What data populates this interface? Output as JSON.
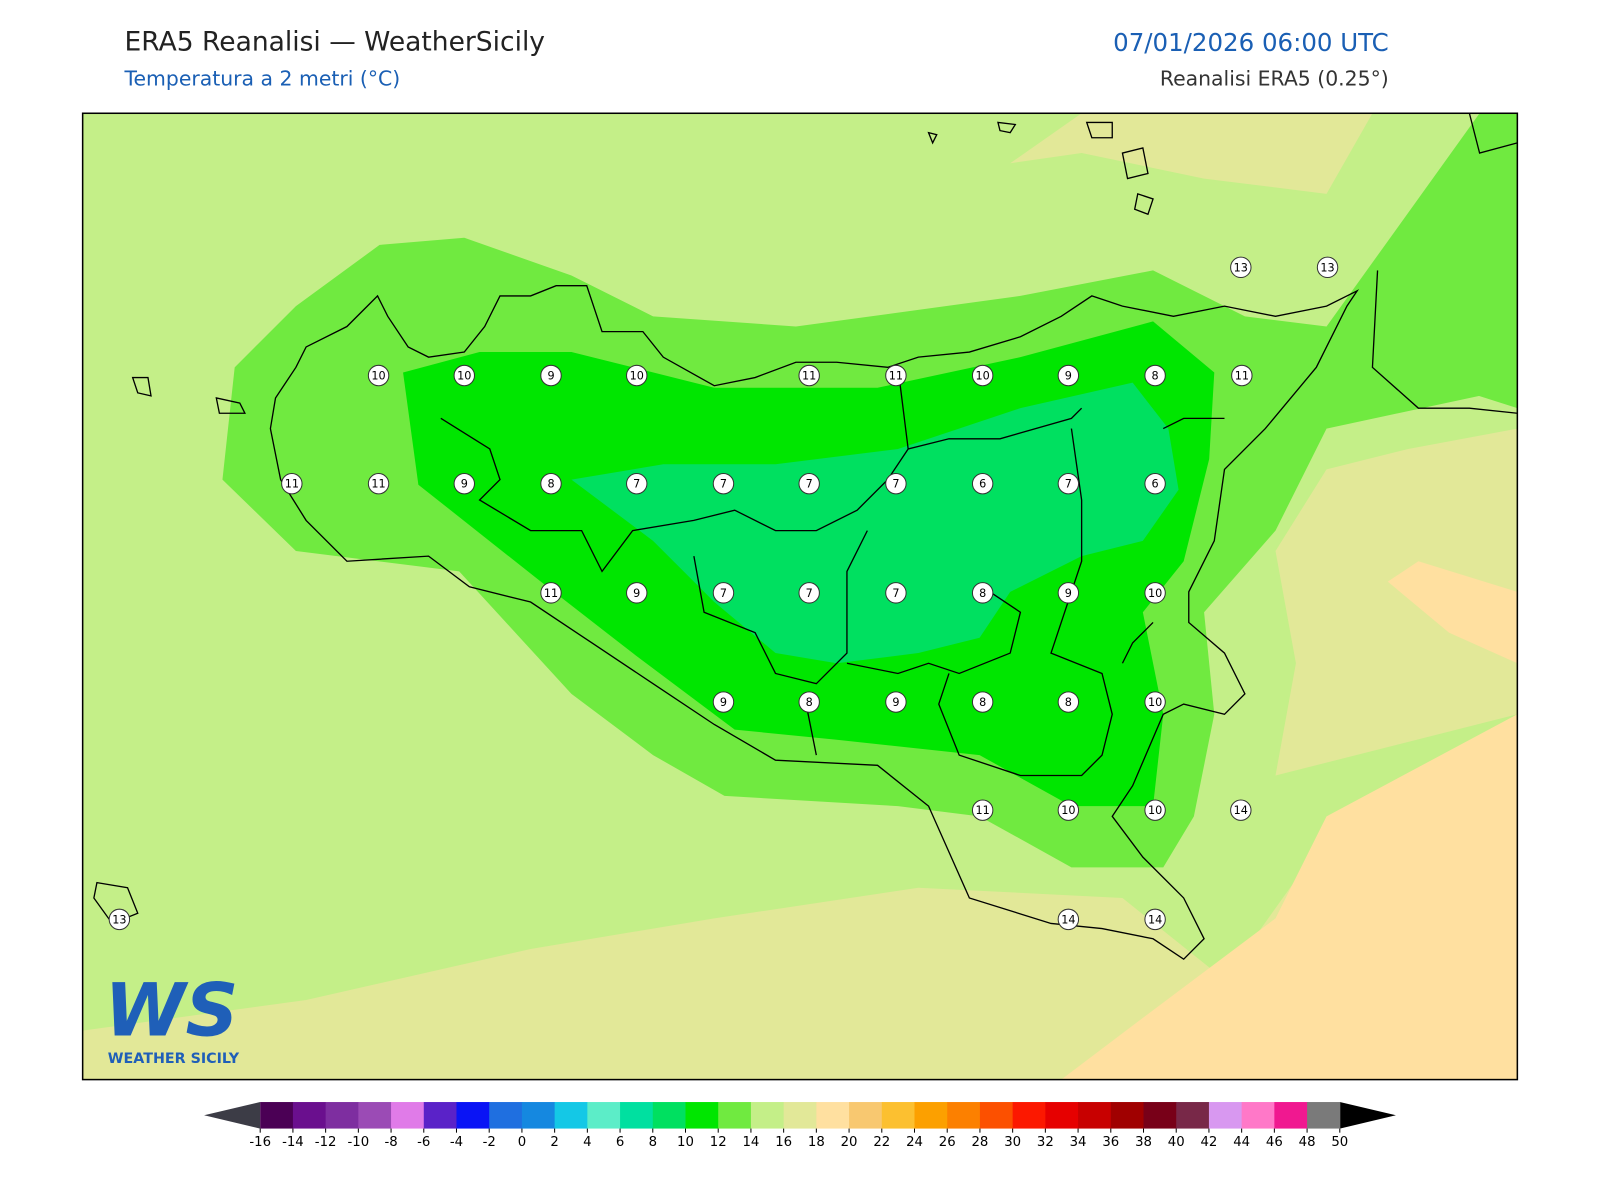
{
  "header": {
    "title": "ERA5 Reanalisi — WeatherSicily",
    "subtitle": "Temperatura a 2 metri (°C)",
    "datetime": "07/01/2026 06:00 UTC",
    "source": "Reanalisi ERA5 (0.25°)"
  },
  "map": {
    "station_values": [
      13,
      13,
      10,
      10,
      9,
      10,
      11,
      11,
      10,
      9,
      8,
      11,
      11,
      11,
      9,
      8,
      7,
      7,
      7,
      7,
      6,
      7,
      6,
      11,
      9,
      7,
      7,
      7,
      8,
      9,
      10,
      9,
      8,
      9,
      8,
      8,
      10,
      11,
      10,
      10,
      14,
      13,
      14,
      14
    ]
  },
  "logo": {
    "mark": "WS",
    "text": "WEATHER SICILY"
  },
  "colorbar": {
    "ticks": [
      -16,
      -14,
      -12,
      -10,
      -8,
      -6,
      -4,
      -2,
      0,
      2,
      4,
      6,
      8,
      10,
      12,
      14,
      16,
      18,
      20,
      22,
      24,
      26,
      28,
      30,
      32,
      34,
      36,
      38,
      40,
      42,
      44,
      46,
      48,
      50
    ],
    "colors": [
      "#4b0055",
      "#6a0f8e",
      "#7e2ea0",
      "#9b4bb5",
      "#e07be8",
      "#5a22c8",
      "#0a14f5",
      "#1f6fe0",
      "#1588e0",
      "#14c8e6",
      "#5cedc8",
      "#00e0a0",
      "#00e060",
      "#00e600",
      "#70ea40",
      "#c4ef88",
      "#e2e898",
      "#ffe0a0",
      "#f8c870",
      "#fcc030",
      "#fca000",
      "#fc8000",
      "#fc5000",
      "#fc1800",
      "#e60000",
      "#c80000",
      "#a00000",
      "#780018",
      "#782848",
      "#d898f0",
      "#ff78c8",
      "#f01890",
      "#7a7a7a"
    ],
    "under": "#3c3c46",
    "over": "#000000"
  }
}
